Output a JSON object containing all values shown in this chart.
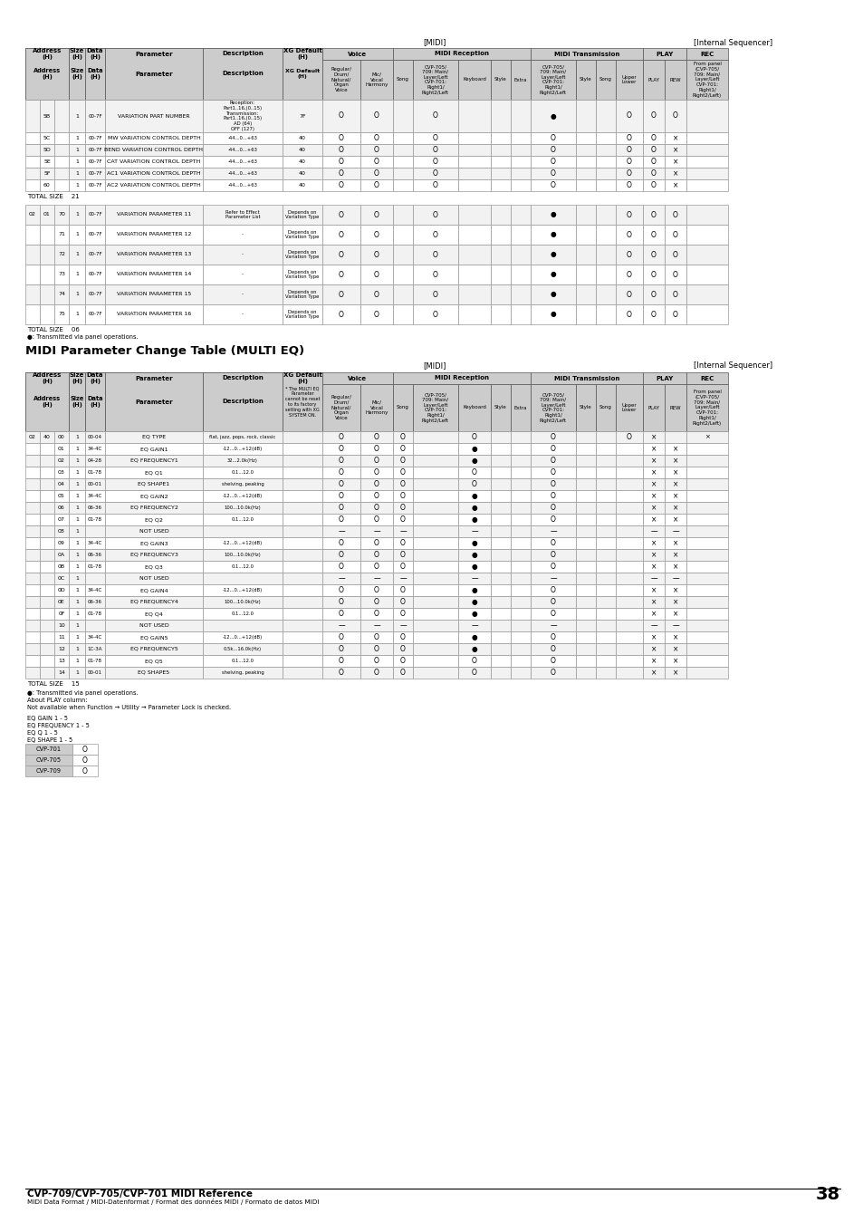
{
  "page_num": "38",
  "footer_left": "CVP-709/CVP-705/CVP-701 MIDI Reference",
  "footer_right_sub": "MIDI Data Format / MIDI-Datenformat / Format des données MIDI / Formato de datos MIDI",
  "top_rows": [
    [
      "",
      "5B",
      "1",
      "00-7F",
      "VARIATION PART NUMBER",
      "Reception:\nPart1..16,(0..15)\nTransmission:\nPart1..16,(0..15)\nAD (64)\nOFF (127)",
      "7F",
      "O",
      "O",
      "",
      "O",
      "",
      "",
      "",
      "●",
      "",
      "",
      "O",
      "O",
      "O"
    ],
    [
      "",
      "5C",
      "1",
      "00-7F",
      "MW VARIATION CONTROL DEPTH",
      "-44...0...+63",
      "40",
      "O",
      "O",
      "",
      "O",
      "",
      "",
      "",
      "O",
      "",
      "",
      "O",
      "O",
      "×"
    ],
    [
      "",
      "5D",
      "1",
      "00-7F",
      "BEND VARIATION CONTROL DEPTH",
      "-44...0...+63",
      "40",
      "O",
      "O",
      "",
      "O",
      "",
      "",
      "",
      "O",
      "",
      "",
      "O",
      "O",
      "×"
    ],
    [
      "",
      "5E",
      "1",
      "00-7F",
      "CAT VARIATION CONTROL DEPTH",
      "-44...0...+63",
      "40",
      "O",
      "O",
      "",
      "O",
      "",
      "",
      "",
      "O",
      "",
      "",
      "O",
      "O",
      "×"
    ],
    [
      "",
      "5F",
      "1",
      "00-7F",
      "AC1 VARIATION CONTROL DEPTH",
      "-44...0...+63",
      "40",
      "O",
      "O",
      "",
      "O",
      "",
      "",
      "",
      "O",
      "",
      "",
      "O",
      "O",
      "×"
    ],
    [
      "",
      "60",
      "1",
      "00-7F",
      "AC2 VARIATION CONTROL DEPTH",
      "-44...0...+63",
      "40",
      "O",
      "O",
      "",
      "O",
      "",
      "",
      "",
      "O",
      "",
      "",
      "O",
      "O",
      "×"
    ]
  ],
  "var_rows": [
    [
      "02",
      "01",
      "70",
      "1",
      "00-7F",
      "VARIATION PARAMETER 11",
      "Refer to Effect\nParameter List",
      "Depends on\nVariation Type",
      "O",
      "O",
      "",
      "O",
      "",
      "",
      "",
      "●",
      "",
      "",
      "O",
      "O",
      "O"
    ],
    [
      "",
      "",
      "71",
      "1",
      "00-7F",
      "VARIATION PARAMETER 12",
      "-",
      "Depends on\nVariation Type",
      "O",
      "O",
      "",
      "O",
      "",
      "",
      "",
      "●",
      "",
      "",
      "O",
      "O",
      "O"
    ],
    [
      "",
      "",
      "72",
      "1",
      "00-7F",
      "VARIATION PARAMETER 13",
      "-",
      "Depends on\nVariation Type",
      "O",
      "O",
      "",
      "O",
      "",
      "",
      "",
      "●",
      "",
      "",
      "O",
      "O",
      "O"
    ],
    [
      "",
      "",
      "73",
      "1",
      "00-7F",
      "VARIATION PARAMETER 14",
      "-",
      "Depends on\nVariation Type",
      "O",
      "O",
      "",
      "O",
      "",
      "",
      "",
      "●",
      "",
      "",
      "O",
      "O",
      "O"
    ],
    [
      "",
      "",
      "74",
      "1",
      "00-7F",
      "VARIATION PARAMETER 15",
      "-",
      "Depends on\nVariation Type",
      "O",
      "O",
      "",
      "O",
      "",
      "",
      "",
      "●",
      "",
      "",
      "O",
      "O",
      "O"
    ],
    [
      "",
      "",
      "75",
      "1",
      "00-7F",
      "VARIATION PARAMETER 16",
      "-",
      "Depends on\nVariation Type",
      "O",
      "O",
      "",
      "O",
      "",
      "",
      "",
      "●",
      "",
      "",
      "O",
      "O",
      "O"
    ]
  ],
  "eq_rows": [
    [
      "02",
      "40",
      "00",
      "1",
      "00-04",
      "EQ TYPE",
      "flat, jazz, pops, rock, classic",
      "O",
      "O",
      "O",
      "",
      "O",
      "",
      "",
      "O",
      "",
      "",
      "O",
      "×",
      "×"
    ],
    [
      "",
      "",
      "01",
      "1",
      "34-4C",
      "EQ GAIN1",
      "-12...0...+12(dB)",
      "O",
      "O",
      "O",
      "",
      "●",
      "",
      "",
      "O",
      "×",
      "×"
    ],
    [
      "",
      "",
      "02",
      "1",
      "04-28",
      "EQ FREQUENCY1",
      "32...2.0k(Hz)",
      "O",
      "O",
      "O",
      "",
      "●",
      "",
      "",
      "O",
      "×",
      "×"
    ],
    [
      "",
      "",
      "03",
      "1",
      "01-78",
      "EQ Q1",
      "0.1...12.0",
      "O",
      "O",
      "O",
      "",
      "O",
      "",
      "",
      "O",
      "×",
      "×"
    ],
    [
      "",
      "",
      "04",
      "1",
      "00-01",
      "EQ SHAPE1",
      "shelving, peaking",
      "O",
      "O",
      "O",
      "",
      "O",
      "",
      "",
      "O",
      "×",
      "×"
    ],
    [
      "",
      "",
      "05",
      "1",
      "34-4C",
      "EQ GAIN2",
      "-12...0...+12(dB)",
      "O",
      "O",
      "O",
      "",
      "●",
      "",
      "",
      "O",
      "×",
      "×"
    ],
    [
      "",
      "",
      "06",
      "1",
      "06-36",
      "EQ FREQUENCY2",
      "100...10.0k(Hz)",
      "O",
      "O",
      "O",
      "",
      "●",
      "",
      "",
      "O",
      "×",
      "×"
    ],
    [
      "",
      "",
      "07",
      "1",
      "01-78",
      "EQ Q2",
      "0.1...12.0",
      "O",
      "O",
      "O",
      "",
      "●",
      "",
      "",
      "O",
      "×",
      "×"
    ],
    [
      "",
      "",
      "08",
      "1",
      "",
      "NOT USED",
      "",
      "—",
      "—",
      "—",
      "",
      "—",
      "",
      "",
      "—",
      "—",
      "—"
    ],
    [
      "",
      "",
      "09",
      "1",
      "34-4C",
      "EQ GAIN3",
      "-12...0...+12(dB)",
      "O",
      "O",
      "O",
      "",
      "●",
      "",
      "",
      "O",
      "×",
      "×"
    ],
    [
      "",
      "",
      "0A",
      "1",
      "06-36",
      "EQ FREQUENCY3",
      "100...10.0k(Hz)",
      "O",
      "O",
      "O",
      "",
      "●",
      "",
      "",
      "O",
      "×",
      "×"
    ],
    [
      "",
      "",
      "0B",
      "1",
      "01-78",
      "EQ Q3",
      "0.1...12.0",
      "O",
      "O",
      "O",
      "",
      "●",
      "",
      "",
      "O",
      "×",
      "×"
    ],
    [
      "",
      "",
      "0C",
      "1",
      "",
      "NOT USED",
      "",
      "—",
      "—",
      "—",
      "",
      "—",
      "",
      "",
      "—",
      "—",
      "—"
    ],
    [
      "",
      "",
      "0D",
      "1",
      "34-4C",
      "EQ GAIN4",
      "-12...0...+12(dB)",
      "O",
      "O",
      "O",
      "",
      "●",
      "",
      "",
      "O",
      "×",
      "×"
    ],
    [
      "",
      "",
      "0E",
      "1",
      "06-36",
      "EQ FREQUENCY4",
      "100...10.0k(Hz)",
      "O",
      "O",
      "O",
      "",
      "●",
      "",
      "",
      "O",
      "×",
      "×"
    ],
    [
      "",
      "",
      "0F",
      "1",
      "01-78",
      "EQ Q4",
      "0.1...12.0",
      "O",
      "O",
      "O",
      "",
      "●",
      "",
      "",
      "O",
      "×",
      "×"
    ],
    [
      "",
      "",
      "10",
      "1",
      "",
      "NOT USED",
      "",
      "—",
      "—",
      "—",
      "",
      "—",
      "",
      "",
      "—",
      "—",
      "—"
    ],
    [
      "",
      "",
      "11",
      "1",
      "34-4C",
      "EQ GAIN5",
      "-12...0...+12(dB)",
      "O",
      "O",
      "O",
      "",
      "●",
      "",
      "",
      "O",
      "×",
      "×"
    ],
    [
      "",
      "",
      "12",
      "1",
      "1C-3A",
      "EQ FREQUENCY5",
      "0.5k...16.0k(Hz)",
      "O",
      "O",
      "O",
      "",
      "●",
      "",
      "",
      "O",
      "×",
      "×"
    ],
    [
      "",
      "",
      "13",
      "1",
      "01-78",
      "EQ Q5",
      "0.1...12.0",
      "O",
      "O",
      "O",
      "",
      "O",
      "",
      "",
      "O",
      "×",
      "×"
    ],
    [
      "",
      "",
      "14",
      "1",
      "00-01",
      "EQ SHAPE5",
      "shelving, peaking",
      "O",
      "O",
      "O",
      "",
      "O",
      "",
      "",
      "O",
      "×",
      "×"
    ]
  ]
}
